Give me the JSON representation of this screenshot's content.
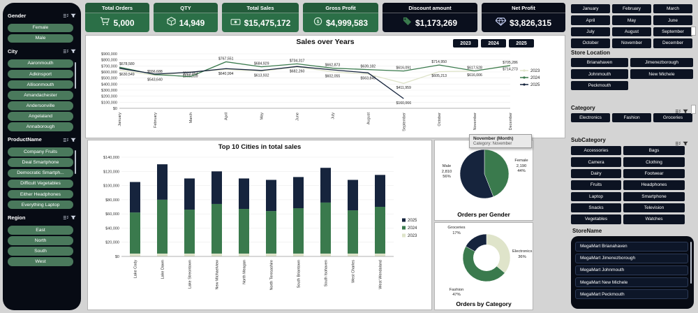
{
  "left_sidebar": {
    "sections": [
      {
        "title": "Gender",
        "items": [
          "Female",
          "Male"
        ]
      },
      {
        "title": "City",
        "items": [
          "Aaronmouth",
          "Adkinsport",
          "Allisonmouth",
          "Amandachester",
          "Andersonville",
          "Angelaland",
          "Annaborough"
        ]
      },
      {
        "title": "ProductName",
        "items": [
          "Company Fruits",
          "Deal Smartphone",
          "Democratic Smartph...",
          "Difficult Vegetables",
          "Either Headphones",
          "Everything Laptop"
        ]
      },
      {
        "title": "Region",
        "items": [
          "East",
          "North",
          "South",
          "West"
        ]
      }
    ]
  },
  "kpis": [
    {
      "label": "Total Orders",
      "value": "5,000",
      "icon": "cart-icon",
      "theme": "green"
    },
    {
      "label": "QTY",
      "value": "14,949",
      "icon": "box-icon",
      "theme": "green"
    },
    {
      "label": "Total Sales",
      "value": "$15,475,172",
      "icon": "cash-icon",
      "theme": "green"
    },
    {
      "label": "Gross Profit",
      "value": "$4,999,583",
      "icon": "dollar-circle-icon",
      "theme": "green"
    },
    {
      "label": "Discount amount",
      "value": "$1,173,269",
      "icon": "discount-tag-icon",
      "theme": "dark"
    },
    {
      "label": "Net Profit",
      "value": "$3,826,315",
      "icon": "diamond-icon",
      "theme": "dark"
    }
  ],
  "year_buttons": [
    "2023",
    "2024",
    "2025"
  ],
  "tooltip": {
    "line1": "November (Month)",
    "line2": "Category: November"
  },
  "right_panel": {
    "months": [
      "January",
      "February",
      "March",
      "April",
      "May",
      "June",
      "July",
      "August",
      "September",
      "October",
      "November",
      "December"
    ],
    "store_location": {
      "title": "Store Location",
      "items": [
        "Brianahaven",
        "Jimenezborough",
        "Johnmouth",
        "New Michele",
        "Peckmouth"
      ]
    },
    "category": {
      "title": "Category",
      "items": [
        "Electronics",
        "Fashion",
        "Groceries"
      ]
    },
    "subcategory": {
      "title": "SubCategory",
      "items": [
        "Accessories",
        "Bags",
        "Camera",
        "Clothing",
        "Dairy",
        "Footwear",
        "Fruits",
        "Headphones",
        "Laptop",
        "Smartphone",
        "Snacks",
        "Television",
        "Vegetables",
        "Watches"
      ]
    },
    "storename": {
      "title": "StoreName",
      "items": [
        "MegaMart Brianahaven",
        "MegaMart Jimenezborough",
        "MegaMart Johnmouth",
        "MegaMart New Michele",
        "MegaMart Peckmouth"
      ]
    }
  },
  "chart_data": [
    {
      "type": "line",
      "title": "Sales over Years",
      "x": [
        "January",
        "February",
        "March",
        "April",
        "May",
        "June",
        "July",
        "August",
        "September",
        "October",
        "November",
        "December"
      ],
      "ylim": [
        0,
        900000
      ],
      "ytick": 100000,
      "legend_position": "right",
      "series": [
        {
          "name": "2023",
          "color": "#dfe4ca",
          "labels": "below",
          "values": [
            630549,
            543640,
            599539,
            640994,
            613932,
            682260,
            602055,
            563849,
            411959,
            605213,
            616006,
            714273
          ]
        },
        {
          "name": "2024",
          "color": "#3a7a4d",
          "labels": "above",
          "values": [
            678580,
            556688,
            523863,
            767551,
            684929,
            734317,
            662873,
            639182,
            616091,
            714950,
            617528,
            705286
          ]
        },
        {
          "name": "2025",
          "color": "#16243d",
          "labels": "last",
          "values": [
            660000,
            565000,
            595000,
            655000,
            625000,
            690000,
            635000,
            585000,
            160066,
            null,
            null,
            null
          ]
        }
      ]
    },
    {
      "type": "bar",
      "title": "Top 10 Cities in total sales",
      "categories": [
        "Lake Cody",
        "Lake Dawn",
        "Lake Streontown",
        "New Michaelview",
        "North Meagan",
        "North Teresashire",
        "South Briantown",
        "South Isohaven",
        "West Charles",
        "West Wendaland"
      ],
      "ylim": [
        0,
        140000
      ],
      "ytick": 20000,
      "stacked": true,
      "legend_order": [
        "2025",
        "2024",
        "2023"
      ],
      "series": [
        {
          "name": "2023",
          "color": "#dfe4ca",
          "values": [
            4000,
            4000,
            4000,
            4000,
            4000,
            4000,
            4000,
            4000,
            4000,
            4000
          ]
        },
        {
          "name": "2024",
          "color": "#3a7a4d",
          "values": [
            58000,
            76000,
            62000,
            70000,
            63000,
            60000,
            64000,
            72000,
            61000,
            66000
          ]
        },
        {
          "name": "2025",
          "color": "#16243d",
          "values": [
            43000,
            50000,
            44000,
            46000,
            43000,
            44000,
            44000,
            49000,
            43000,
            45000
          ]
        }
      ]
    },
    {
      "type": "pie",
      "title": "Orders per Gender",
      "slices": [
        {
          "label": "Female",
          "value": "2,190",
          "pct": "44%",
          "pct_num": 44,
          "color": "#3a7a4d"
        },
        {
          "label": "Male",
          "value": "2,810",
          "pct": "56%",
          "pct_num": 56,
          "color": "#16243d"
        }
      ]
    },
    {
      "type": "donut",
      "title": "Orders by Category",
      "slices": [
        {
          "label": "Electronics",
          "pct": "36%",
          "pct_num": 36,
          "color": "#dfe4ca"
        },
        {
          "label": "Fashion",
          "pct": "47%",
          "pct_num": 47,
          "color": "#3a7a4d"
        },
        {
          "label": "Groceries",
          "pct": "17%",
          "pct_num": 17,
          "color": "#16243d"
        }
      ]
    }
  ],
  "colors": {
    "page_bg": "#d4d4d4",
    "sidebar_bg": "#070b14",
    "green_button": "#4a795c",
    "kpi_green": "#2b6f47",
    "kpi_dark": "#0a0f1d",
    "nav_dark": "#0c1322",
    "series_2023": "#dfe4ca",
    "series_2024": "#3a7a4d",
    "series_2025": "#16243d"
  }
}
